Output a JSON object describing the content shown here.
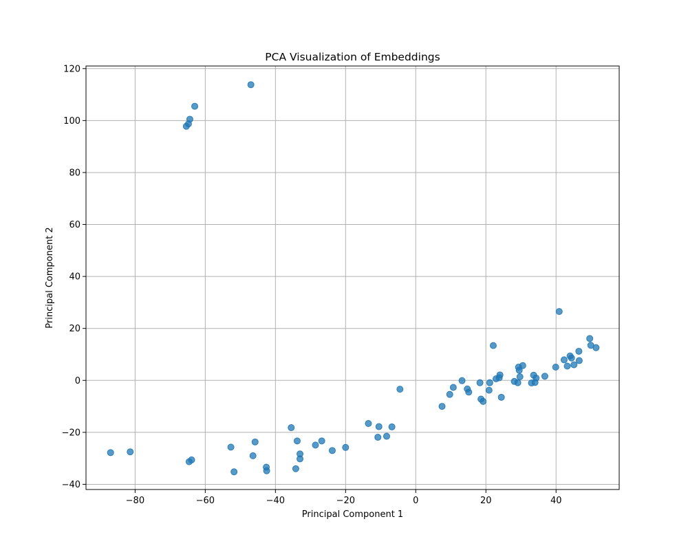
{
  "chart_data": {
    "type": "scatter",
    "title": "PCA Visualization of Embeddings",
    "xlabel": "Principal Component 1",
    "ylabel": "Principal Component 2",
    "xlim": [
      -94,
      58
    ],
    "ylim": [
      -42,
      121
    ],
    "xticks": [
      -80,
      -60,
      -40,
      -20,
      0,
      20,
      40
    ],
    "yticks": [
      -40,
      -20,
      0,
      20,
      40,
      60,
      80,
      100,
      120
    ],
    "grid": true,
    "color": "#1f77b4",
    "points": [
      {
        "x": -47.0,
        "y": 113.8
      },
      {
        "x": -63.0,
        "y": 105.5
      },
      {
        "x": -64.4,
        "y": 100.5
      },
      {
        "x": -64.8,
        "y": 98.7
      },
      {
        "x": -65.4,
        "y": 97.8
      },
      {
        "x": 40.9,
        "y": 26.5
      },
      {
        "x": 22.1,
        "y": 13.4
      },
      {
        "x": 49.6,
        "y": 16.1
      },
      {
        "x": 49.9,
        "y": 13.5
      },
      {
        "x": 51.4,
        "y": 12.6
      },
      {
        "x": 46.5,
        "y": 11.2
      },
      {
        "x": 44.0,
        "y": 9.4
      },
      {
        "x": 44.4,
        "y": 8.6
      },
      {
        "x": 42.3,
        "y": 7.9
      },
      {
        "x": 46.6,
        "y": 7.6
      },
      {
        "x": 45.1,
        "y": 6.0
      },
      {
        "x": 43.2,
        "y": 5.5
      },
      {
        "x": 39.9,
        "y": 5.1
      },
      {
        "x": 30.5,
        "y": 5.7
      },
      {
        "x": 29.3,
        "y": 5.1
      },
      {
        "x": 29.5,
        "y": 3.9
      },
      {
        "x": 29.7,
        "y": 1.4
      },
      {
        "x": 24.0,
        "y": 2.1
      },
      {
        "x": 22.9,
        "y": 0.6
      },
      {
        "x": 23.8,
        "y": 1.0
      },
      {
        "x": 33.6,
        "y": 2.0
      },
      {
        "x": 34.3,
        "y": 0.9
      },
      {
        "x": 36.8,
        "y": 1.6
      },
      {
        "x": 28.1,
        "y": -0.4
      },
      {
        "x": 29.1,
        "y": -0.9
      },
      {
        "x": 33.0,
        "y": -1.0
      },
      {
        "x": 34.0,
        "y": -0.8
      },
      {
        "x": 13.2,
        "y": -0.1
      },
      {
        "x": 18.3,
        "y": -0.9
      },
      {
        "x": 21.1,
        "y": -0.9
      },
      {
        "x": 10.7,
        "y": -2.7
      },
      {
        "x": 9.7,
        "y": -5.4
      },
      {
        "x": 14.7,
        "y": -3.3
      },
      {
        "x": 15.1,
        "y": -4.5
      },
      {
        "x": 20.9,
        "y": -3.8
      },
      {
        "x": 18.6,
        "y": -7.2
      },
      {
        "x": 19.2,
        "y": -8.1
      },
      {
        "x": 24.4,
        "y": -6.5
      },
      {
        "x": 7.5,
        "y": -10.0
      },
      {
        "x": -4.5,
        "y": -3.4
      },
      {
        "x": -13.5,
        "y": -16.6
      },
      {
        "x": -10.5,
        "y": -17.8
      },
      {
        "x": -6.8,
        "y": -17.9
      },
      {
        "x": -10.8,
        "y": -21.9
      },
      {
        "x": -8.3,
        "y": -21.5
      },
      {
        "x": -20.0,
        "y": -25.8
      },
      {
        "x": -23.8,
        "y": -27.0
      },
      {
        "x": -26.8,
        "y": -23.3
      },
      {
        "x": -28.6,
        "y": -24.9
      },
      {
        "x": -35.5,
        "y": -18.2
      },
      {
        "x": -33.8,
        "y": -23.3
      },
      {
        "x": -33.0,
        "y": -28.3
      },
      {
        "x": -33.0,
        "y": -30.2
      },
      {
        "x": -34.2,
        "y": -34.0
      },
      {
        "x": -45.8,
        "y": -23.7
      },
      {
        "x": -46.4,
        "y": -29.0
      },
      {
        "x": -42.6,
        "y": -33.4
      },
      {
        "x": -42.5,
        "y": -34.8
      },
      {
        "x": -52.7,
        "y": -25.7
      },
      {
        "x": -51.8,
        "y": -35.2
      },
      {
        "x": -63.9,
        "y": -30.6
      },
      {
        "x": -64.6,
        "y": -31.3
      },
      {
        "x": -81.4,
        "y": -27.5
      },
      {
        "x": -87.0,
        "y": -27.8
      }
    ]
  }
}
